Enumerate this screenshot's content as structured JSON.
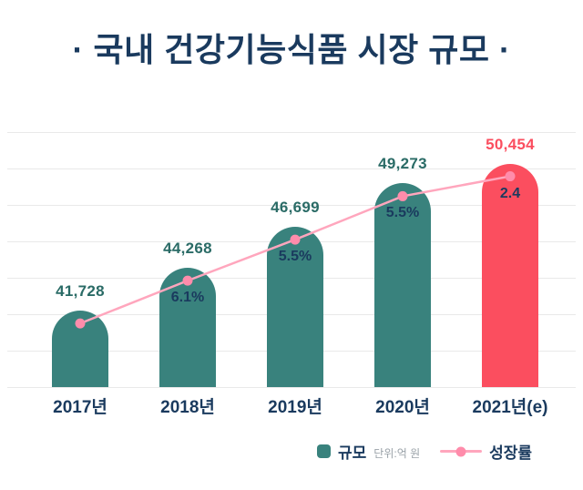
{
  "title": "· 국내 건강기능식품 시장 규모 ·",
  "legend": {
    "bar_label": "규모",
    "unit": "단위:억 원",
    "line_label": "성장률"
  },
  "colors": {
    "navy": "#1a3a5e",
    "teal": "#39827d",
    "red": "#fb4e5f",
    "value_teal": "#2a6b66",
    "line_pink": "#ffa6bd",
    "dot_pink": "#ff8cab",
    "grid": "#e9e9e9",
    "unit_gray": "#9aa2a8"
  },
  "chart_data": {
    "type": "bar",
    "title": "국내 건강기능식품 시장 규모",
    "unit": "억 원",
    "categories": [
      "2017년",
      "2018년",
      "2019년",
      "2020년",
      "2021년(e)"
    ],
    "series": [
      {
        "name": "규모",
        "type": "bar",
        "values": [
          41728,
          44268,
          46699,
          49273,
          50454
        ],
        "labels": [
          "41,728",
          "44,268",
          "46,699",
          "49,273",
          "50,454"
        ]
      },
      {
        "name": "성장률",
        "type": "line",
        "values": [
          null,
          6.1,
          5.5,
          5.5,
          2.4
        ],
        "labels": [
          "",
          "6.1%",
          "5.5%",
          "5.5%",
          "2.4"
        ]
      }
    ],
    "highlight_index": 4,
    "ylim": [
      37200,
      52700
    ],
    "grid": "horizontal",
    "legend_position": "bottom"
  }
}
